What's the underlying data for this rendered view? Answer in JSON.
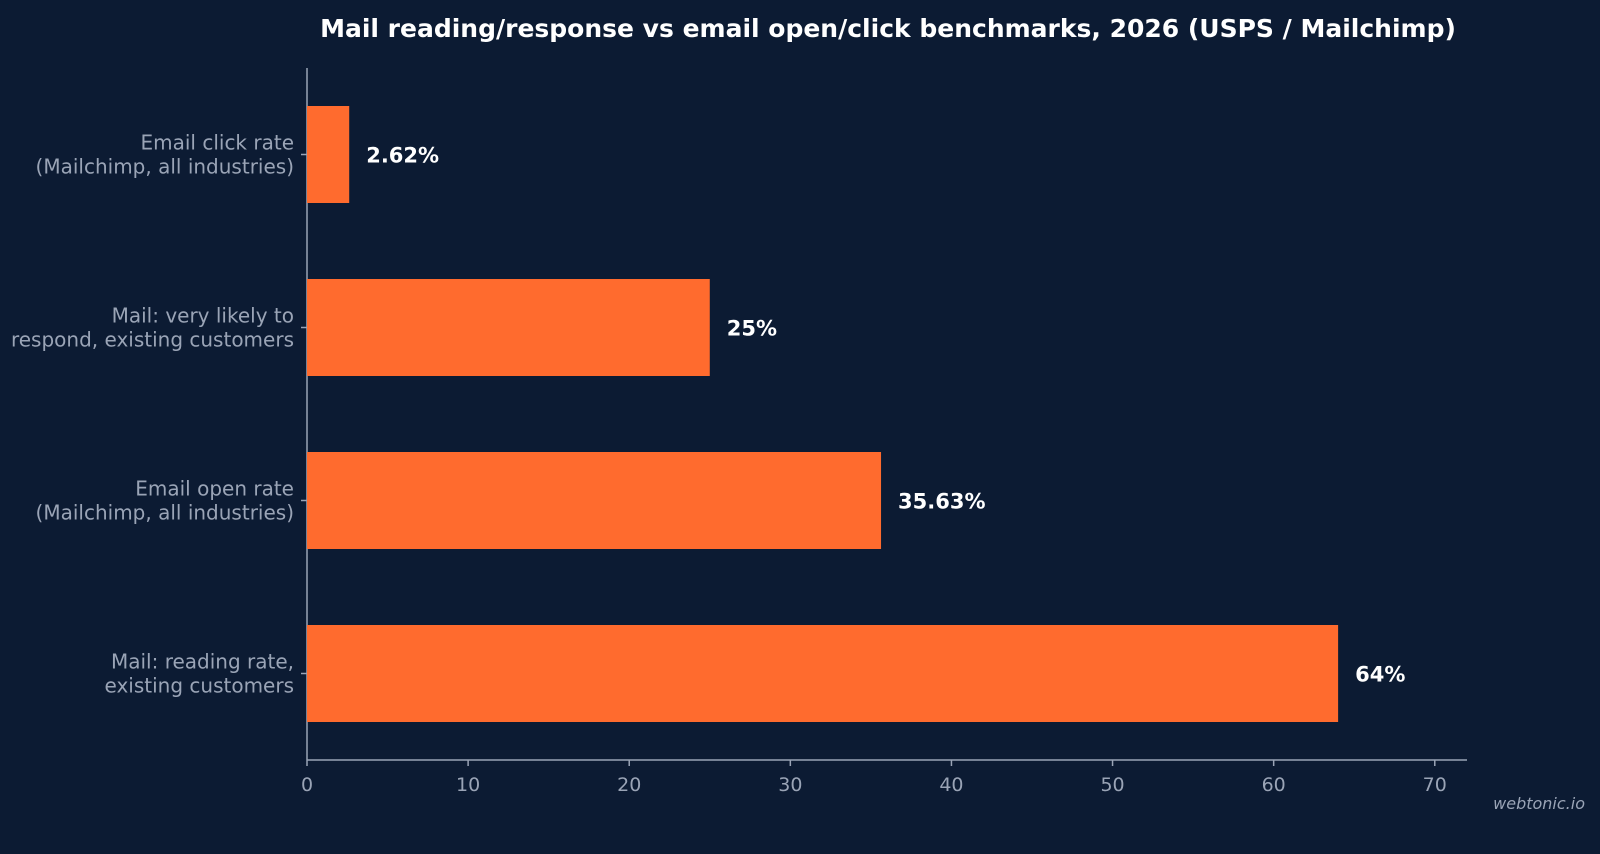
{
  "chart_data": {
    "type": "bar",
    "orientation": "horizontal",
    "title": "Mail reading/response vs email open/click benchmarks, 2026 (USPS / Mailchimp)",
    "categories": [
      [
        "Email click rate",
        "(Mailchimp, all industries)"
      ],
      [
        "Mail: very likely to",
        "respond, existing customers"
      ],
      [
        "Email open rate",
        "(Mailchimp, all industries)"
      ],
      [
        "Mail: reading rate,",
        "existing customers"
      ]
    ],
    "values": [
      2.62,
      25,
      35.63,
      64
    ],
    "value_labels": [
      "2.62%",
      "25%",
      "35.63%",
      "64%"
    ],
    "xlim": [
      0,
      72
    ],
    "xticks": [
      0,
      10,
      20,
      30,
      40,
      50,
      60,
      70
    ],
    "bar_color": "#ff6b2e",
    "background_color": "#0c1b33",
    "text_color": "#9aa4b6",
    "grid": false
  },
  "watermark": "webtonic.io"
}
